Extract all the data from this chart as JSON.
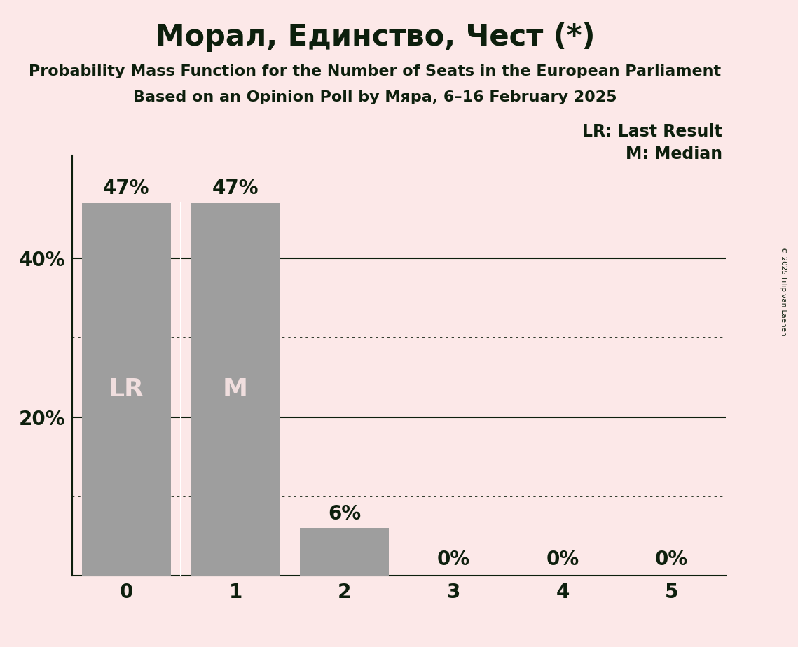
{
  "title": "Морал, Единство, Чест (*)",
  "subtitle1": "Probability Mass Function for the Number of Seats in the European Parliament",
  "subtitle2": "Based on an Opinion Poll by Мяра, 6–16 February 2025",
  "copyright": "© 2025 Filip van Laenen",
  "categories": [
    0,
    1,
    2,
    3,
    4,
    5
  ],
  "values": [
    0.47,
    0.47,
    0.06,
    0.0,
    0.0,
    0.0
  ],
  "bar_color": "#9e9e9e",
  "bar_labels": [
    "47%",
    "47%",
    "6%",
    "0%",
    "0%",
    "0%"
  ],
  "lr_index": 0,
  "median_index": 1,
  "lr_label": "LR",
  "median_label": "M",
  "legend_lr": "LR: Last Result",
  "legend_m": "M: Median",
  "background_color": "#fce8e8",
  "bar_text_color_inside": "#f0dede",
  "bar_text_color_outside": "#0d1f0d",
  "title_color": "#0d1f0d",
  "ylabel_ticks": [
    0.0,
    0.2,
    0.4
  ],
  "ylabel_labels": [
    "",
    "20%",
    "40%"
  ],
  "solid_lines": [
    0.2,
    0.4
  ],
  "dotted_lines": [
    0.1,
    0.3
  ],
  "ylim": [
    0,
    0.53
  ],
  "xlim": [
    -0.5,
    5.5
  ],
  "title_fontsize": 30,
  "subtitle_fontsize": 16,
  "tick_fontsize": 20,
  "bar_label_fontsize": 20,
  "inside_label_fontsize": 26,
  "legend_fontsize": 17,
  "bar_width": 0.82
}
